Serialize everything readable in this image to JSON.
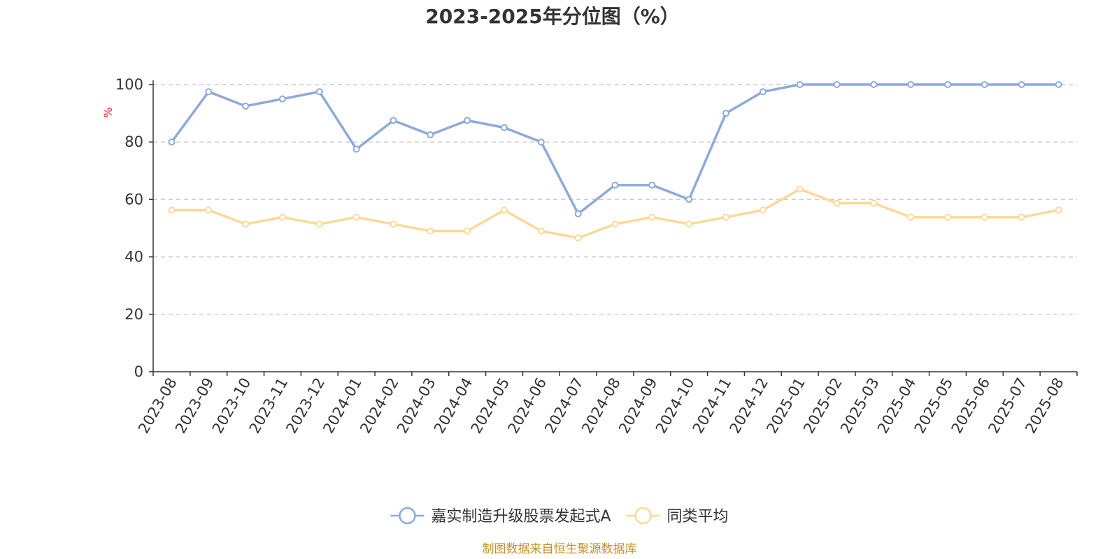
{
  "chart_data": {
    "type": "line",
    "title": "2023-2025年分位图（%）",
    "ylabel": "%",
    "ylim": [
      0,
      100
    ],
    "yticks": [
      0,
      20,
      40,
      60,
      80,
      100
    ],
    "grid": true,
    "legend_position": "bottom-center",
    "categories": [
      "2023-08",
      "2023-09",
      "2023-10",
      "2023-11",
      "2023-12",
      "2024-01",
      "2024-02",
      "2024-03",
      "2024-04",
      "2024-05",
      "2024-06",
      "2024-07",
      "2024-08",
      "2024-09",
      "2024-10",
      "2024-11",
      "2024-12",
      "2025-01",
      "2025-02",
      "2025-03",
      "2025-04",
      "2025-05",
      "2025-06",
      "2025-07",
      "2025-08"
    ],
    "series": [
      {
        "name": "嘉实制造升级股票发起式A",
        "color": "#8eaad8",
        "values": [
          80,
          97.5,
          92.5,
          95,
          97.5,
          77.5,
          87.5,
          82.5,
          87.5,
          85,
          80,
          55,
          65,
          65,
          60,
          90,
          97.5,
          100,
          100,
          100,
          100,
          100,
          100,
          100,
          100
        ]
      },
      {
        "name": "同类平均",
        "color": "#fbd998",
        "values": [
          56.3,
          56.3,
          51.4,
          53.8,
          51.4,
          53.8,
          51.4,
          49,
          49,
          56.3,
          49,
          46.6,
          51.4,
          53.8,
          51.4,
          53.8,
          56.3,
          63.6,
          58.7,
          58.7,
          53.8,
          53.8,
          53.8,
          53.8,
          56.3
        ]
      }
    ],
    "ylabel_color": "#e03030",
    "axis_color": "#333333",
    "grid_color": "#cccccc"
  },
  "footer": {
    "text": "制图数据来自恒生聚源数据库",
    "color": "#c8902a"
  }
}
